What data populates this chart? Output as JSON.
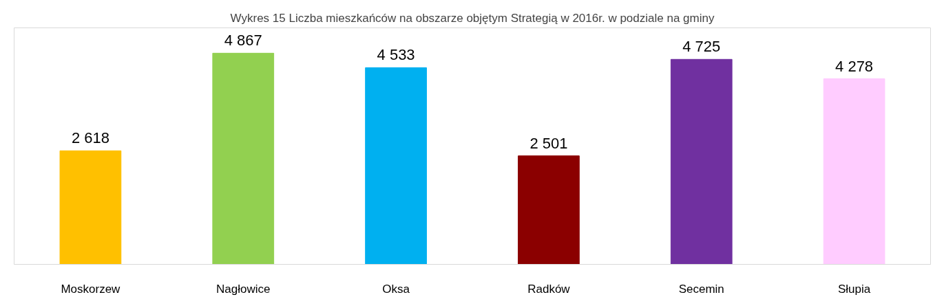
{
  "chart_data": {
    "type": "bar",
    "title": "Wykres 15 Liczba mieszkańców na obszarze objętym Strategią w 2016r. w podziale na gminy",
    "categories": [
      "Moskorzew",
      "Nagłowice",
      "Oksa",
      "Radków",
      "Secemin",
      "Słupia"
    ],
    "values": [
      2618,
      4867,
      4533,
      2501,
      4725,
      4278
    ],
    "colors": [
      "#ffc000",
      "#92d050",
      "#00b0f0",
      "#8b0000",
      "#7030a0",
      "#ffccff"
    ],
    "value_labels": [
      "2 618",
      "4 867",
      "4 533",
      "2 501",
      "4 725",
      "4 278"
    ],
    "grid": false,
    "tick_labels": "x"
  }
}
